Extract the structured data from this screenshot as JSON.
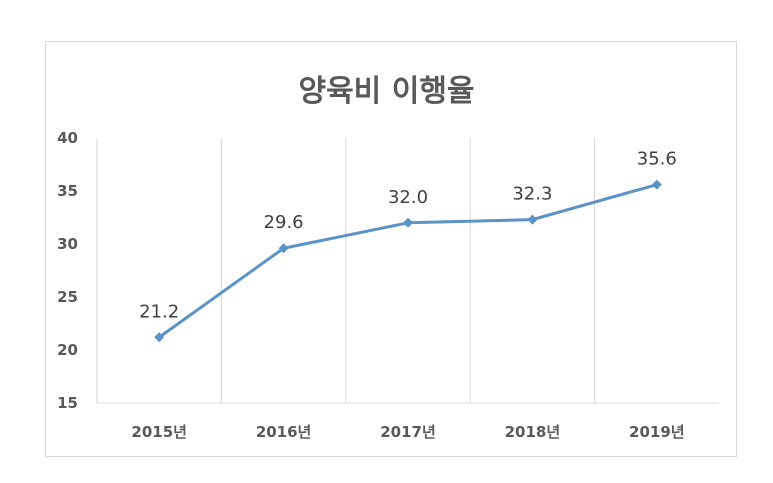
{
  "chart_data": {
    "type": "line",
    "title": "양육비 이행율",
    "categories": [
      "2015년",
      "2016년",
      "2017년",
      "2018년",
      "2019년"
    ],
    "series": [
      {
        "values": [
          21.2,
          29.6,
          32.0,
          32.3,
          35.6
        ],
        "labels": [
          "21.2",
          "29.6",
          "32.0",
          "32.3",
          "35.6"
        ]
      }
    ],
    "y_ticks": [
      "40",
      "35",
      "30",
      "25",
      "20",
      "15"
    ],
    "ylim": [
      15,
      40
    ],
    "grid": "vertical",
    "legend": "none",
    "line_color": "#5b93c7",
    "grid_color": "#d9d9d9"
  }
}
